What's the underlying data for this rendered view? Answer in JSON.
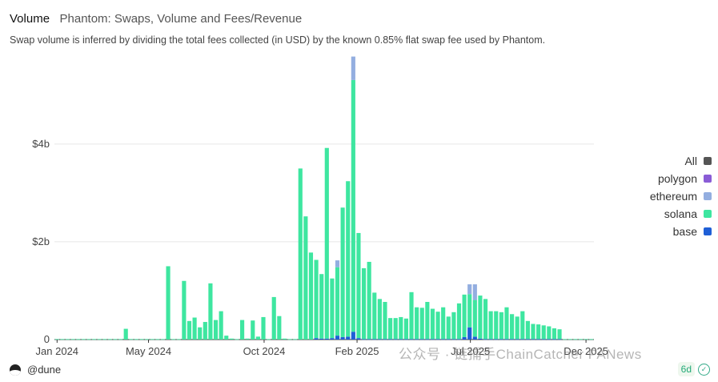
{
  "header": {
    "tab_label": "Volume",
    "title": "Phantom: Swaps, Volume and Fees/Revenue",
    "description": "Swap volume is inferred by dividing the total fees collected (in USD) by the known 0.85% flat swap fee used by Phantom."
  },
  "footer": {
    "source": "@dune",
    "age": "6d"
  },
  "watermark": "公众号 · 链捕手ChainCatcher  PANews",
  "colors": {
    "solana": "#3ee6a0",
    "ethereum": "#93aee0",
    "base": "#1f5fd6",
    "polygon": "#8a5cd6",
    "all": "#555555"
  },
  "chart_data": {
    "type": "bar",
    "stacked": true,
    "x_tick_labels": [
      "Jan 2024",
      "May 2024",
      "Oct 2024",
      "Feb 2025",
      "Jul 2025",
      "Dec 2025"
    ],
    "y_tick_labels": [
      "0",
      "$2b",
      "$4b"
    ],
    "ylim": [
      0,
      5.8
    ],
    "y_unit": "billion USD",
    "grid": true,
    "legend": "right",
    "legend_entries": [
      {
        "name": "All",
        "color": "#555555"
      },
      {
        "name": "polygon",
        "color": "#8a5cd6"
      },
      {
        "name": "ethereum",
        "color": "#93aee0"
      },
      {
        "name": "solana",
        "color": "#3ee6a0"
      },
      {
        "name": "base",
        "color": "#1f5fd6"
      }
    ],
    "x": [
      "2024-01-01",
      "2024-01-08",
      "2024-01-15",
      "2024-01-22",
      "2024-01-29",
      "2024-02-05",
      "2024-02-12",
      "2024-02-19",
      "2024-02-26",
      "2024-03-04",
      "2024-03-11",
      "2024-03-18",
      "2024-03-25",
      "2024-04-01",
      "2024-04-08",
      "2024-04-15",
      "2024-04-22",
      "2024-04-29",
      "2024-05-06",
      "2024-05-13",
      "2024-05-20",
      "2024-05-27",
      "2024-06-03",
      "2024-06-10",
      "2024-06-17",
      "2024-06-24",
      "2024-07-01",
      "2024-07-08",
      "2024-07-15",
      "2024-07-22",
      "2024-07-29",
      "2024-08-05",
      "2024-08-12",
      "2024-08-19",
      "2024-08-26",
      "2024-09-02",
      "2024-09-09",
      "2024-09-16",
      "2024-09-23",
      "2024-09-30",
      "2024-10-07",
      "2024-10-14",
      "2024-10-21",
      "2024-10-28",
      "2024-11-04",
      "2024-11-11",
      "2024-11-18",
      "2024-11-25",
      "2024-12-02",
      "2024-12-09",
      "2024-12-16",
      "2024-12-23",
      "2024-12-30",
      "2025-01-06",
      "2025-01-13",
      "2025-01-20",
      "2025-01-27",
      "2025-02-03",
      "2025-02-10",
      "2025-02-17",
      "2025-02-24",
      "2025-03-03",
      "2025-03-10",
      "2025-03-17",
      "2025-03-24",
      "2025-03-31",
      "2025-04-07",
      "2025-04-14",
      "2025-04-21",
      "2025-04-28",
      "2025-05-05",
      "2025-05-12",
      "2025-05-19",
      "2025-05-26",
      "2025-06-02",
      "2025-06-09",
      "2025-06-16",
      "2025-06-23",
      "2025-06-30",
      "2025-07-07",
      "2025-07-14",
      "2025-07-21",
      "2025-07-28",
      "2025-08-04",
      "2025-08-11",
      "2025-08-18",
      "2025-08-25",
      "2025-09-01",
      "2025-09-08",
      "2025-09-15",
      "2025-09-22",
      "2025-09-29",
      "2025-10-06",
      "2025-10-13",
      "2025-10-20",
      "2025-10-27",
      "2025-11-03",
      "2025-11-10",
      "2025-11-17",
      "2025-11-24",
      "2025-12-01",
      "2025-12-08"
    ],
    "series": [
      {
        "name": "solana",
        "values": [
          0.01,
          0.01,
          0.01,
          0.01,
          0.01,
          0.01,
          0.01,
          0.01,
          0.01,
          0.01,
          0.01,
          0.01,
          0.01,
          0.22,
          0.01,
          0.01,
          0.01,
          0.01,
          0.01,
          0.01,
          0.01,
          1.5,
          0.01,
          0.01,
          1.2,
          0.38,
          0.45,
          0.25,
          0.36,
          1.15,
          0.4,
          0.58,
          0.08,
          0.02,
          0.01,
          0.4,
          0.02,
          0.39,
          0.06,
          0.46,
          0.01,
          0.87,
          0.48,
          0.02,
          0.01,
          0.01,
          3.5,
          2.52,
          1.78,
          1.6,
          1.32,
          3.9,
          1.22,
          1.4,
          2.65,
          3.18,
          5.15,
          2.15,
          1.45,
          1.58,
          0.95,
          0.82,
          0.76,
          0.43,
          0.43,
          0.45,
          0.42,
          0.96,
          0.65,
          0.64,
          0.76,
          0.62,
          0.56,
          0.65,
          0.46,
          0.55,
          0.73,
          0.87,
          0.68,
          0.75,
          0.88,
          0.82,
          0.57,
          0.57,
          0.55,
          0.65,
          0.51,
          0.46,
          0.57,
          0.37,
          0.31,
          0.3,
          0.28,
          0.26,
          0.22,
          0.2,
          0.01,
          0.01,
          0.01,
          0.01,
          0.01,
          0.01
        ]
      },
      {
        "name": "ethereum",
        "values": [
          0,
          0,
          0,
          0,
          0,
          0,
          0,
          0,
          0,
          0,
          0,
          0,
          0,
          0,
          0,
          0,
          0,
          0,
          0,
          0,
          0,
          0,
          0,
          0,
          0,
          0,
          0,
          0,
          0,
          0,
          0,
          0,
          0,
          0,
          0,
          0,
          0,
          0,
          0,
          0,
          0,
          0,
          0,
          0,
          0,
          0,
          0,
          0,
          0,
          0,
          0,
          0,
          0,
          0.14,
          0,
          0,
          0.48,
          0,
          0,
          0,
          0,
          0,
          0,
          0,
          0,
          0,
          0,
          0,
          0,
          0,
          0,
          0,
          0,
          0,
          0,
          0,
          0,
          0,
          0.2,
          0.32,
          0,
          0,
          0,
          0,
          0,
          0,
          0,
          0,
          0,
          0,
          0,
          0,
          0,
          0,
          0,
          0,
          0,
          0,
          0,
          0,
          0,
          0
        ]
      },
      {
        "name": "base",
        "values": [
          0,
          0,
          0,
          0,
          0,
          0,
          0,
          0,
          0,
          0,
          0,
          0,
          0,
          0,
          0,
          0,
          0,
          0,
          0,
          0,
          0,
          0,
          0,
          0,
          0,
          0,
          0,
          0,
          0,
          0,
          0,
          0,
          0,
          0,
          0,
          0,
          0,
          0,
          0,
          0,
          0,
          0,
          0,
          0,
          0,
          0,
          0,
          0,
          0,
          0.03,
          0.02,
          0.02,
          0.03,
          0.08,
          0.05,
          0.06,
          0.16,
          0.03,
          0.01,
          0.01,
          0.01,
          0.01,
          0.01,
          0.01,
          0.01,
          0.01,
          0.01,
          0.01,
          0.01,
          0.01,
          0.01,
          0.01,
          0.01,
          0.01,
          0.01,
          0.01,
          0.01,
          0.05,
          0.25,
          0.06,
          0.02,
          0.01,
          0.01,
          0.01,
          0.01,
          0.01,
          0.01,
          0.01,
          0.01,
          0.01,
          0.01,
          0.01,
          0.01,
          0.01,
          0.01,
          0.01,
          0,
          0,
          0,
          0,
          0,
          0
        ]
      },
      {
        "name": "polygon",
        "values": [
          0,
          0,
          0,
          0,
          0,
          0,
          0,
          0,
          0,
          0,
          0,
          0,
          0,
          0,
          0,
          0,
          0,
          0,
          0,
          0,
          0,
          0,
          0,
          0,
          0,
          0,
          0,
          0,
          0,
          0,
          0,
          0,
          0,
          0,
          0,
          0,
          0,
          0,
          0,
          0,
          0,
          0,
          0,
          0,
          0,
          0,
          0,
          0,
          0,
          0,
          0,
          0,
          0,
          0,
          0,
          0,
          0,
          0,
          0,
          0,
          0,
          0,
          0,
          0,
          0,
          0,
          0,
          0,
          0,
          0,
          0,
          0,
          0,
          0,
          0,
          0,
          0,
          0,
          0,
          0,
          0,
          0,
          0,
          0,
          0,
          0,
          0,
          0,
          0,
          0,
          0,
          0,
          0,
          0,
          0,
          0,
          0,
          0,
          0,
          0,
          0,
          0
        ]
      }
    ]
  }
}
